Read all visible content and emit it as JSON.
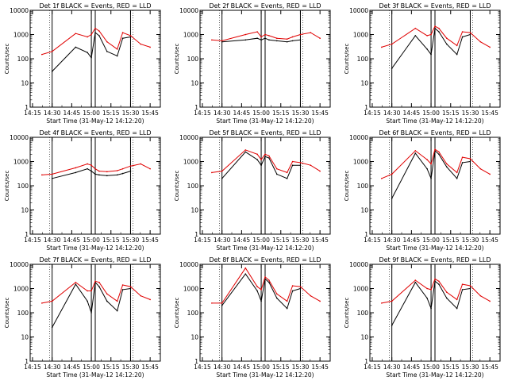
{
  "figure": {
    "ylabel": "Counts/sec",
    "xlabel": "Start Time (31-May-12 14:12:20)",
    "y_ticks": [
      "1",
      "10",
      "100",
      "1000",
      "10000"
    ],
    "x_ticks": [
      "14:15",
      "14:30",
      "14:45",
      "15:00",
      "15:15",
      "15:30",
      "15:45"
    ],
    "colors": {
      "events": "#000000",
      "lld": "#e00000",
      "axes": "#000000"
    }
  },
  "chart_data": [
    {
      "type": "line",
      "title": "Det 1f BLACK = Events, RED = LLD",
      "xlabel": "Start Time (31-May-12 14:12:20)",
      "ylabel": "Counts/sec",
      "ylim": [
        1,
        10000
      ],
      "x": [
        14.37,
        14.5,
        14.8,
        14.95,
        15.0,
        15.05,
        15.1,
        15.2,
        15.33,
        15.4,
        15.5,
        15.63,
        15.75
      ],
      "series": [
        {
          "name": "Events",
          "values": [
            null,
            30,
            300,
            180,
            110,
            1200,
            900,
            200,
            130,
            700,
            800,
            null,
            null
          ]
        },
        {
          "name": "LLD",
          "values": [
            150,
            200,
            1100,
            800,
            1000,
            1800,
            1400,
            500,
            250,
            1200,
            900,
            400,
            300
          ]
        }
      ]
    },
    {
      "type": "line",
      "title": "Det 2f BLACK = Events, RED = LLD",
      "xlabel": "Start Time (31-May-12 14:12:20)",
      "ylabel": "Counts/sec",
      "ylim": [
        1,
        10000
      ],
      "x": [
        14.37,
        14.5,
        14.8,
        14.95,
        15.0,
        15.05,
        15.1,
        15.2,
        15.33,
        15.4,
        15.5,
        15.63,
        15.75
      ],
      "series": [
        {
          "name": "Events",
          "values": [
            null,
            500,
            600,
            700,
            600,
            700,
            600,
            550,
            500,
            550,
            600,
            null,
            null
          ]
        },
        {
          "name": "LLD",
          "values": [
            600,
            550,
            1000,
            1300,
            800,
            1000,
            900,
            700,
            650,
            800,
            1000,
            1200,
            700
          ]
        }
      ]
    },
    {
      "type": "line",
      "title": "Det 3f BLACK = Events, RED = LLD",
      "xlabel": "Start Time (31-May-12 14:12:20)",
      "ylabel": "Counts/sec",
      "ylim": [
        1,
        10000
      ],
      "x": [
        14.37,
        14.5,
        14.8,
        14.95,
        15.0,
        15.05,
        15.1,
        15.2,
        15.33,
        15.4,
        15.5,
        15.63,
        15.75
      ],
      "series": [
        {
          "name": "Events",
          "values": [
            null,
            40,
            900,
            250,
            150,
            1800,
            1300,
            400,
            150,
            800,
            1000,
            null,
            null
          ]
        },
        {
          "name": "LLD",
          "values": [
            300,
            400,
            1800,
            900,
            1000,
            2200,
            1800,
            700,
            350,
            1300,
            1200,
            500,
            300
          ]
        }
      ]
    },
    {
      "type": "line",
      "title": "Det 4f BLACK = Events, RED = LLD",
      "xlabel": "Start Time (31-May-12 14:12:20)",
      "ylabel": "Counts/sec",
      "ylim": [
        1,
        10000
      ],
      "x": [
        14.37,
        14.5,
        14.8,
        14.95,
        15.0,
        15.05,
        15.1,
        15.2,
        15.33,
        15.4,
        15.5,
        15.63,
        15.75
      ],
      "series": [
        {
          "name": "Events",
          "values": [
            null,
            200,
            350,
            500,
            400,
            300,
            280,
            260,
            280,
            320,
            400,
            null,
            null
          ]
        },
        {
          "name": "LLD",
          "values": [
            280,
            300,
            550,
            800,
            700,
            500,
            400,
            380,
            420,
            500,
            650,
            800,
            500
          ]
        }
      ]
    },
    {
      "type": "line",
      "title": "Det 5f BLACK = Events, RED = LLD",
      "xlabel": "Start Time (31-May-12 14:12:20)",
      "ylabel": "Counts/sec",
      "ylim": [
        1,
        10000
      ],
      "x": [
        14.37,
        14.5,
        14.8,
        14.95,
        15.0,
        15.05,
        15.1,
        15.2,
        15.33,
        15.4,
        15.5,
        15.63,
        15.75
      ],
      "series": [
        {
          "name": "Events",
          "values": [
            null,
            200,
            2500,
            1200,
            700,
            1600,
            1400,
            300,
            200,
            700,
            700,
            null,
            null
          ]
        },
        {
          "name": "LLD",
          "values": [
            350,
            400,
            3000,
            2000,
            1200,
            2000,
            1700,
            500,
            350,
            1000,
            900,
            700,
            400
          ]
        }
      ]
    },
    {
      "type": "line",
      "title": "Det 6f BLACK = Events, RED = LLD",
      "xlabel": "Start Time (31-May-12 14:12:20)",
      "ylabel": "Counts/sec",
      "ylim": [
        1,
        10000
      ],
      "x": [
        14.37,
        14.5,
        14.8,
        14.95,
        15.0,
        15.05,
        15.1,
        15.2,
        15.33,
        15.4,
        15.5,
        15.63,
        15.75
      ],
      "series": [
        {
          "name": "Events",
          "values": [
            null,
            30,
            2200,
            500,
            200,
            2800,
            2000,
            600,
            200,
            900,
            1000,
            null,
            null
          ]
        },
        {
          "name": "LLD",
          "values": [
            200,
            300,
            2800,
            1200,
            800,
            3200,
            2500,
            800,
            350,
            1500,
            1300,
            500,
            300
          ]
        }
      ]
    },
    {
      "type": "line",
      "title": "Det 7f BLACK = Events, RED = LLD",
      "xlabel": "Start Time (31-May-12 14:12:20)",
      "ylabel": "Counts/sec",
      "ylim": [
        1,
        10000
      ],
      "x": [
        14.37,
        14.5,
        14.8,
        14.95,
        15.0,
        15.05,
        15.1,
        15.2,
        15.33,
        15.4,
        15.5,
        15.63,
        15.75
      ],
      "series": [
        {
          "name": "Events",
          "values": [
            null,
            25,
            1500,
            300,
            100,
            1800,
            1200,
            300,
            120,
            900,
            1000,
            null,
            null
          ]
        },
        {
          "name": "LLD",
          "values": [
            250,
            300,
            1800,
            800,
            800,
            2000,
            1800,
            600,
            300,
            1400,
            1200,
            500,
            350
          ]
        }
      ]
    },
    {
      "type": "line",
      "title": "Det 8f BLACK = Events, RED = LLD",
      "xlabel": "Start Time (31-May-12 14:12:20)",
      "ylabel": "Counts/sec",
      "ylim": [
        1,
        10000
      ],
      "x": [
        14.37,
        14.5,
        14.8,
        14.95,
        15.0,
        15.05,
        15.1,
        15.2,
        15.33,
        15.4,
        15.5,
        15.63,
        15.75
      ],
      "series": [
        {
          "name": "Events",
          "values": [
            null,
            200,
            4000,
            800,
            300,
            2500,
            1800,
            400,
            150,
            800,
            1000,
            null,
            null
          ]
        },
        {
          "name": "LLD",
          "values": [
            250,
            250,
            7000,
            1200,
            900,
            3000,
            2200,
            600,
            300,
            1300,
            1200,
            500,
            300
          ]
        }
      ]
    },
    {
      "type": "line",
      "title": "Det 9f BLACK = Events, RED = LLD",
      "xlabel": "Start Time (31-May-12 14:12:20)",
      "ylabel": "Counts/sec",
      "ylim": [
        1,
        10000
      ],
      "x": [
        14.37,
        14.5,
        14.8,
        14.95,
        15.0,
        15.05,
        15.1,
        15.2,
        15.33,
        15.4,
        15.5,
        15.63,
        15.75
      ],
      "series": [
        {
          "name": "Events",
          "values": [
            null,
            30,
            1800,
            400,
            150,
            2000,
            1500,
            400,
            150,
            900,
            1000,
            null,
            null
          ]
        },
        {
          "name": "LLD",
          "values": [
            250,
            300,
            2200,
            1000,
            900,
            2500,
            2000,
            700,
            350,
            1500,
            1300,
            500,
            300
          ]
        }
      ]
    }
  ]
}
